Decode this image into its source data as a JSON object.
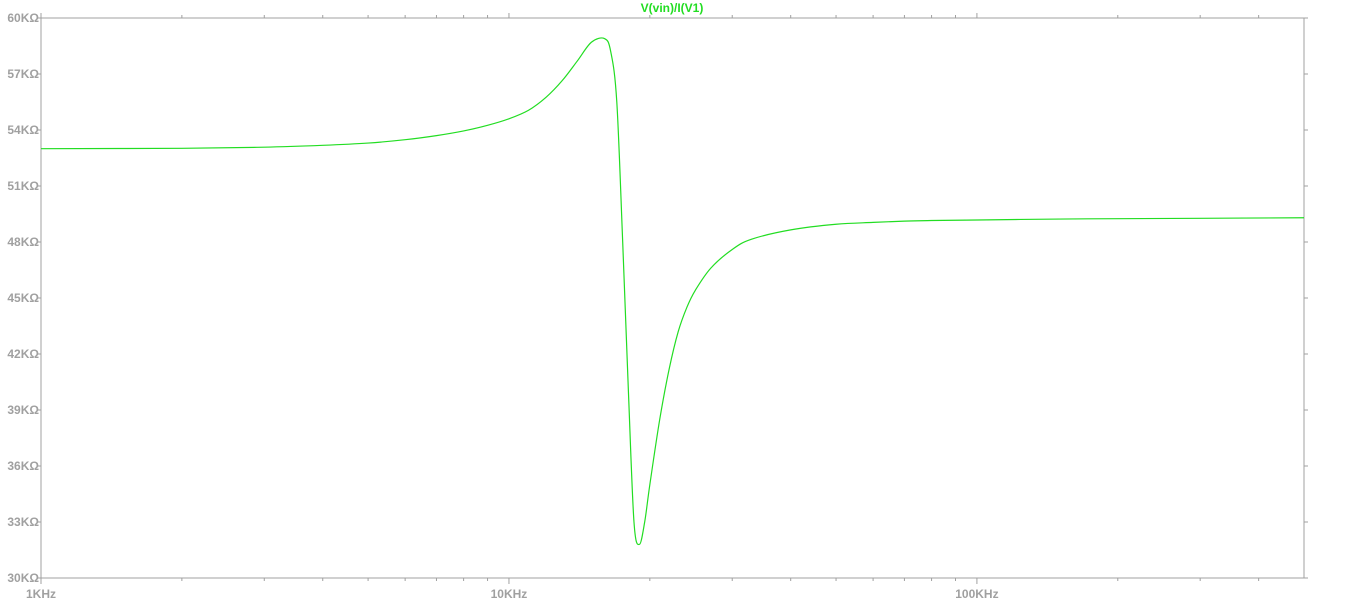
{
  "chart_data": {
    "type": "line",
    "title": "V(vin)/I(V1)",
    "xlabel": "",
    "ylabel": "",
    "x_scale": "log",
    "xlim": [
      1000,
      500000
    ],
    "ylim": [
      30000,
      60000
    ],
    "x_ticks": [
      1000,
      10000,
      100000
    ],
    "x_tick_labels": [
      "1KHz",
      "10KHz",
      "100KHz"
    ],
    "y_ticks": [
      60000,
      57000,
      54000,
      51000,
      48000,
      45000,
      42000,
      39000,
      36000,
      33000,
      30000
    ],
    "y_tick_labels": [
      "60KΩ",
      "57KΩ",
      "54KΩ",
      "51KΩ",
      "48KΩ",
      "45KΩ",
      "42KΩ",
      "39KΩ",
      "36KΩ",
      "33KΩ",
      "30KΩ"
    ],
    "grid": false,
    "colors": {
      "trace": "#22dd22",
      "title": "#22dd22",
      "frame": "#a0a0a0",
      "tick_text": "#a0a0a0"
    },
    "series": [
      {
        "name": "V(vin)/I(V1)",
        "x": [
          1000,
          2000,
          3000,
          4000,
          5000,
          6000,
          7000,
          8000,
          9000,
          10000,
          11000,
          12000,
          13000,
          14000,
          15000,
          16000,
          16500,
          17000,
          17500,
          18000,
          18500,
          19000,
          19500,
          20000,
          21000,
          22000,
          23000,
          24000,
          25000,
          27000,
          30000,
          33000,
          40000,
          50000,
          60000,
          70000,
          80000,
          100000,
          150000,
          200000,
          300000,
          500000
        ],
        "y": [
          53000,
          53020,
          53080,
          53180,
          53300,
          53480,
          53700,
          53950,
          54250,
          54600,
          55050,
          55750,
          56650,
          57700,
          58700,
          58900,
          58200,
          55500,
          48000,
          40000,
          33000,
          31800,
          33000,
          35000,
          38500,
          41200,
          43200,
          44500,
          45400,
          46600,
          47600,
          48150,
          48650,
          48950,
          49050,
          49120,
          49150,
          49180,
          49230,
          49250,
          49270,
          49300
        ]
      }
    ]
  }
}
